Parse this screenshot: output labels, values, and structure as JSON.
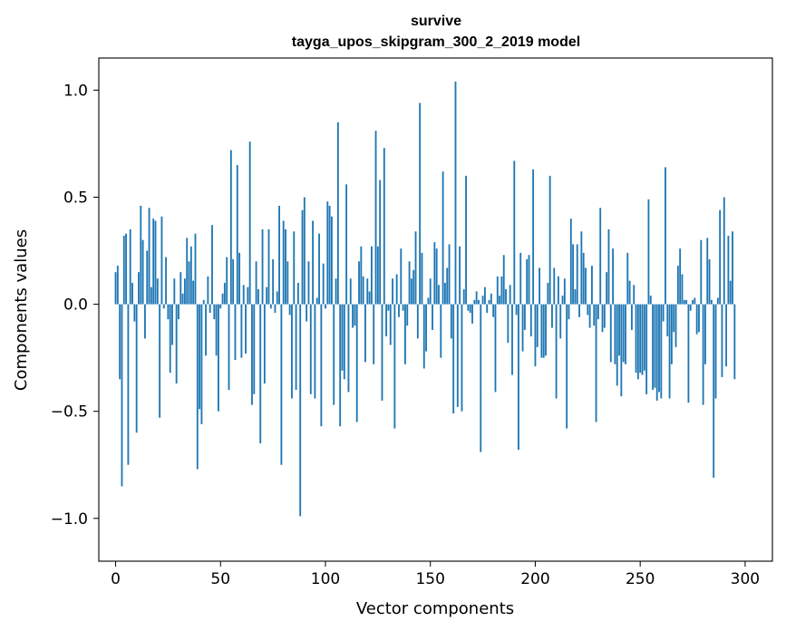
{
  "chart_data": {
    "type": "bar",
    "title": "survive",
    "subtitle": "tayga_upos_skipgram_300_2_2019 model",
    "xlabel": "Vector components",
    "ylabel": "Components values",
    "xlim": [
      -8,
      313
    ],
    "ylim": [
      -1.2,
      1.15
    ],
    "xticks": [
      0,
      50,
      100,
      150,
      200,
      250,
      300
    ],
    "yticks": [
      -1.0,
      -0.5,
      0.0,
      0.5,
      1.0
    ],
    "ytick_labels": [
      "−1.0",
      "−0.5",
      "0.0",
      "0.5",
      "1.0"
    ],
    "bar_color": "#1f77b4",
    "n": 300,
    "values": [
      0.15,
      0.18,
      -0.35,
      -0.85,
      0.32,
      0.33,
      -0.75,
      0.35,
      0.1,
      -0.08,
      -0.6,
      0.15,
      0.46,
      0.3,
      -0.16,
      0.25,
      0.45,
      0.08,
      0.4,
      0.39,
      0.12,
      -0.53,
      0.41,
      -0.02,
      0.22,
      -0.07,
      -0.32,
      -0.19,
      0.12,
      -0.37,
      -0.07,
      0.15,
      0.05,
      0.12,
      0.31,
      0.2,
      0.27,
      0.11,
      0.33,
      -0.77,
      -0.49,
      -0.56,
      0.02,
      -0.24,
      0.13,
      -0.04,
      0.37,
      -0.07,
      -0.24,
      -0.5,
      -0.02,
      0.05,
      0.1,
      0.22,
      -0.4,
      0.72,
      0.21,
      -0.26,
      0.65,
      0.24,
      -0.25,
      0.09,
      -0.23,
      0.08,
      0.76,
      -0.47,
      -0.42,
      0.2,
      0.07,
      -0.65,
      0.35,
      -0.37,
      0.08,
      0.35,
      -0.02,
      0.21,
      -0.04,
      0.06,
      0.46,
      -0.75,
      0.39,
      0.35,
      0.2,
      -0.05,
      -0.44,
      0.34,
      -0.4,
      0.1,
      -0.99,
      0.44,
      0.5,
      -0.08,
      0.2,
      -0.42,
      0.39,
      -0.44,
      0.03,
      0.33,
      -0.57,
      0.19,
      -0.02,
      0.48,
      0.46,
      0.41,
      -0.47,
      0.12,
      0.85,
      -0.57,
      -0.31,
      -0.35,
      0.56,
      -0.41,
      0.12,
      -0.11,
      -0.1,
      -0.55,
      0.2,
      0.27,
      0.13,
      -0.27,
      0.12,
      0.06,
      0.27,
      -0.28,
      0.81,
      0.27,
      0.58,
      -0.45,
      0.73,
      -0.15,
      -0.03,
      -0.19,
      0.12,
      -0.58,
      0.14,
      -0.06,
      0.26,
      -0.03,
      -0.28,
      -0.1,
      0.2,
      0.12,
      0.16,
      0.34,
      -0.16,
      0.94,
      0.24,
      -0.3,
      -0.22,
      0.03,
      0.12,
      -0.12,
      0.29,
      0.26,
      0.09,
      -0.25,
      0.62,
      0.1,
      0.17,
      0.28,
      -0.16,
      -0.51,
      1.04,
      -0.48,
      0.27,
      -0.5,
      0.07,
      0.6,
      -0.03,
      -0.04,
      -0.09,
      0.02,
      0.06,
      0.02,
      -0.69,
      0.04,
      0.08,
      -0.04,
      0.02,
      0.05,
      -0.06,
      -0.41,
      0.13,
      0.04,
      0.13,
      0.23,
      0.07,
      -0.18,
      0.09,
      -0.33,
      0.67,
      -0.05,
      -0.68,
      0.24,
      -0.22,
      -0.12,
      0.21,
      0.23,
      -0.15,
      0.63,
      -0.29,
      -0.2,
      0.17,
      -0.25,
      -0.25,
      -0.24,
      0.1,
      0.6,
      -0.11,
      0.17,
      -0.44,
      0.13,
      -0.16,
      0.04,
      0.12,
      -0.58,
      -0.07,
      0.4,
      0.28,
      0.07,
      0.28,
      -0.06,
      0.34,
      0.24,
      0.17,
      -0.05,
      -0.11,
      0.18,
      -0.1,
      -0.55,
      -0.07,
      0.45,
      -0.13,
      -0.11,
      0.15,
      0.35,
      -0.27,
      0.26,
      -0.28,
      -0.38,
      -0.24,
      -0.43,
      -0.27,
      -0.28,
      0.24,
      0.11,
      -0.12,
      0.09,
      -0.32,
      -0.35,
      -0.32,
      -0.33,
      -0.31,
      -0.42,
      0.49,
      0.04,
      -0.4,
      -0.39,
      -0.45,
      -0.41,
      -0.44,
      -0.08,
      0.64,
      -0.15,
      -0.44,
      -0.28,
      -0.13,
      -0.2,
      0.18,
      0.26,
      0.14,
      0.02,
      0.02,
      -0.46,
      -0.03,
      0.02,
      0.03,
      -0.14,
      -0.13,
      0.3,
      -0.47,
      -0.28,
      0.31,
      0.21,
      0.02,
      -0.81,
      -0.44,
      0.03,
      0.44,
      -0.34,
      0.5,
      -0.29,
      0.32,
      0.11,
      0.34,
      -0.35,
      0.0,
      0.0,
      0.0,
      0.0
    ]
  }
}
